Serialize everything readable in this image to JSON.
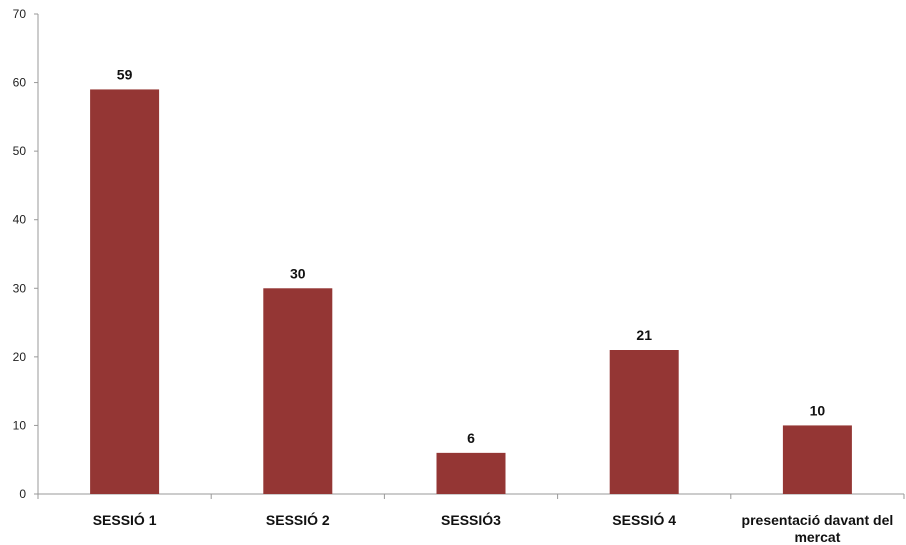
{
  "chart_data": {
    "type": "bar",
    "categories": [
      [
        "SESSIÓ 1"
      ],
      [
        "SESSIÓ 2"
      ],
      [
        "SESSIÓ3"
      ],
      [
        "SESSIÓ 4"
      ],
      [
        "presentació davant del",
        "mercat"
      ]
    ],
    "values": [
      59,
      30,
      6,
      21,
      10
    ],
    "data_labels": [
      "59",
      "30",
      "6",
      "21",
      "10"
    ],
    "ylim": [
      0,
      70
    ],
    "yticks": [
      0,
      10,
      20,
      30,
      40,
      50,
      60,
      70
    ],
    "ytick_labels": [
      "0",
      "10",
      "20",
      "30",
      "40",
      "50",
      "60",
      "70"
    ],
    "title": "",
    "xlabel": "",
    "ylabel": "",
    "grid": false,
    "legend": "none",
    "bar_color": "#943634",
    "axis_color": "#999999"
  }
}
